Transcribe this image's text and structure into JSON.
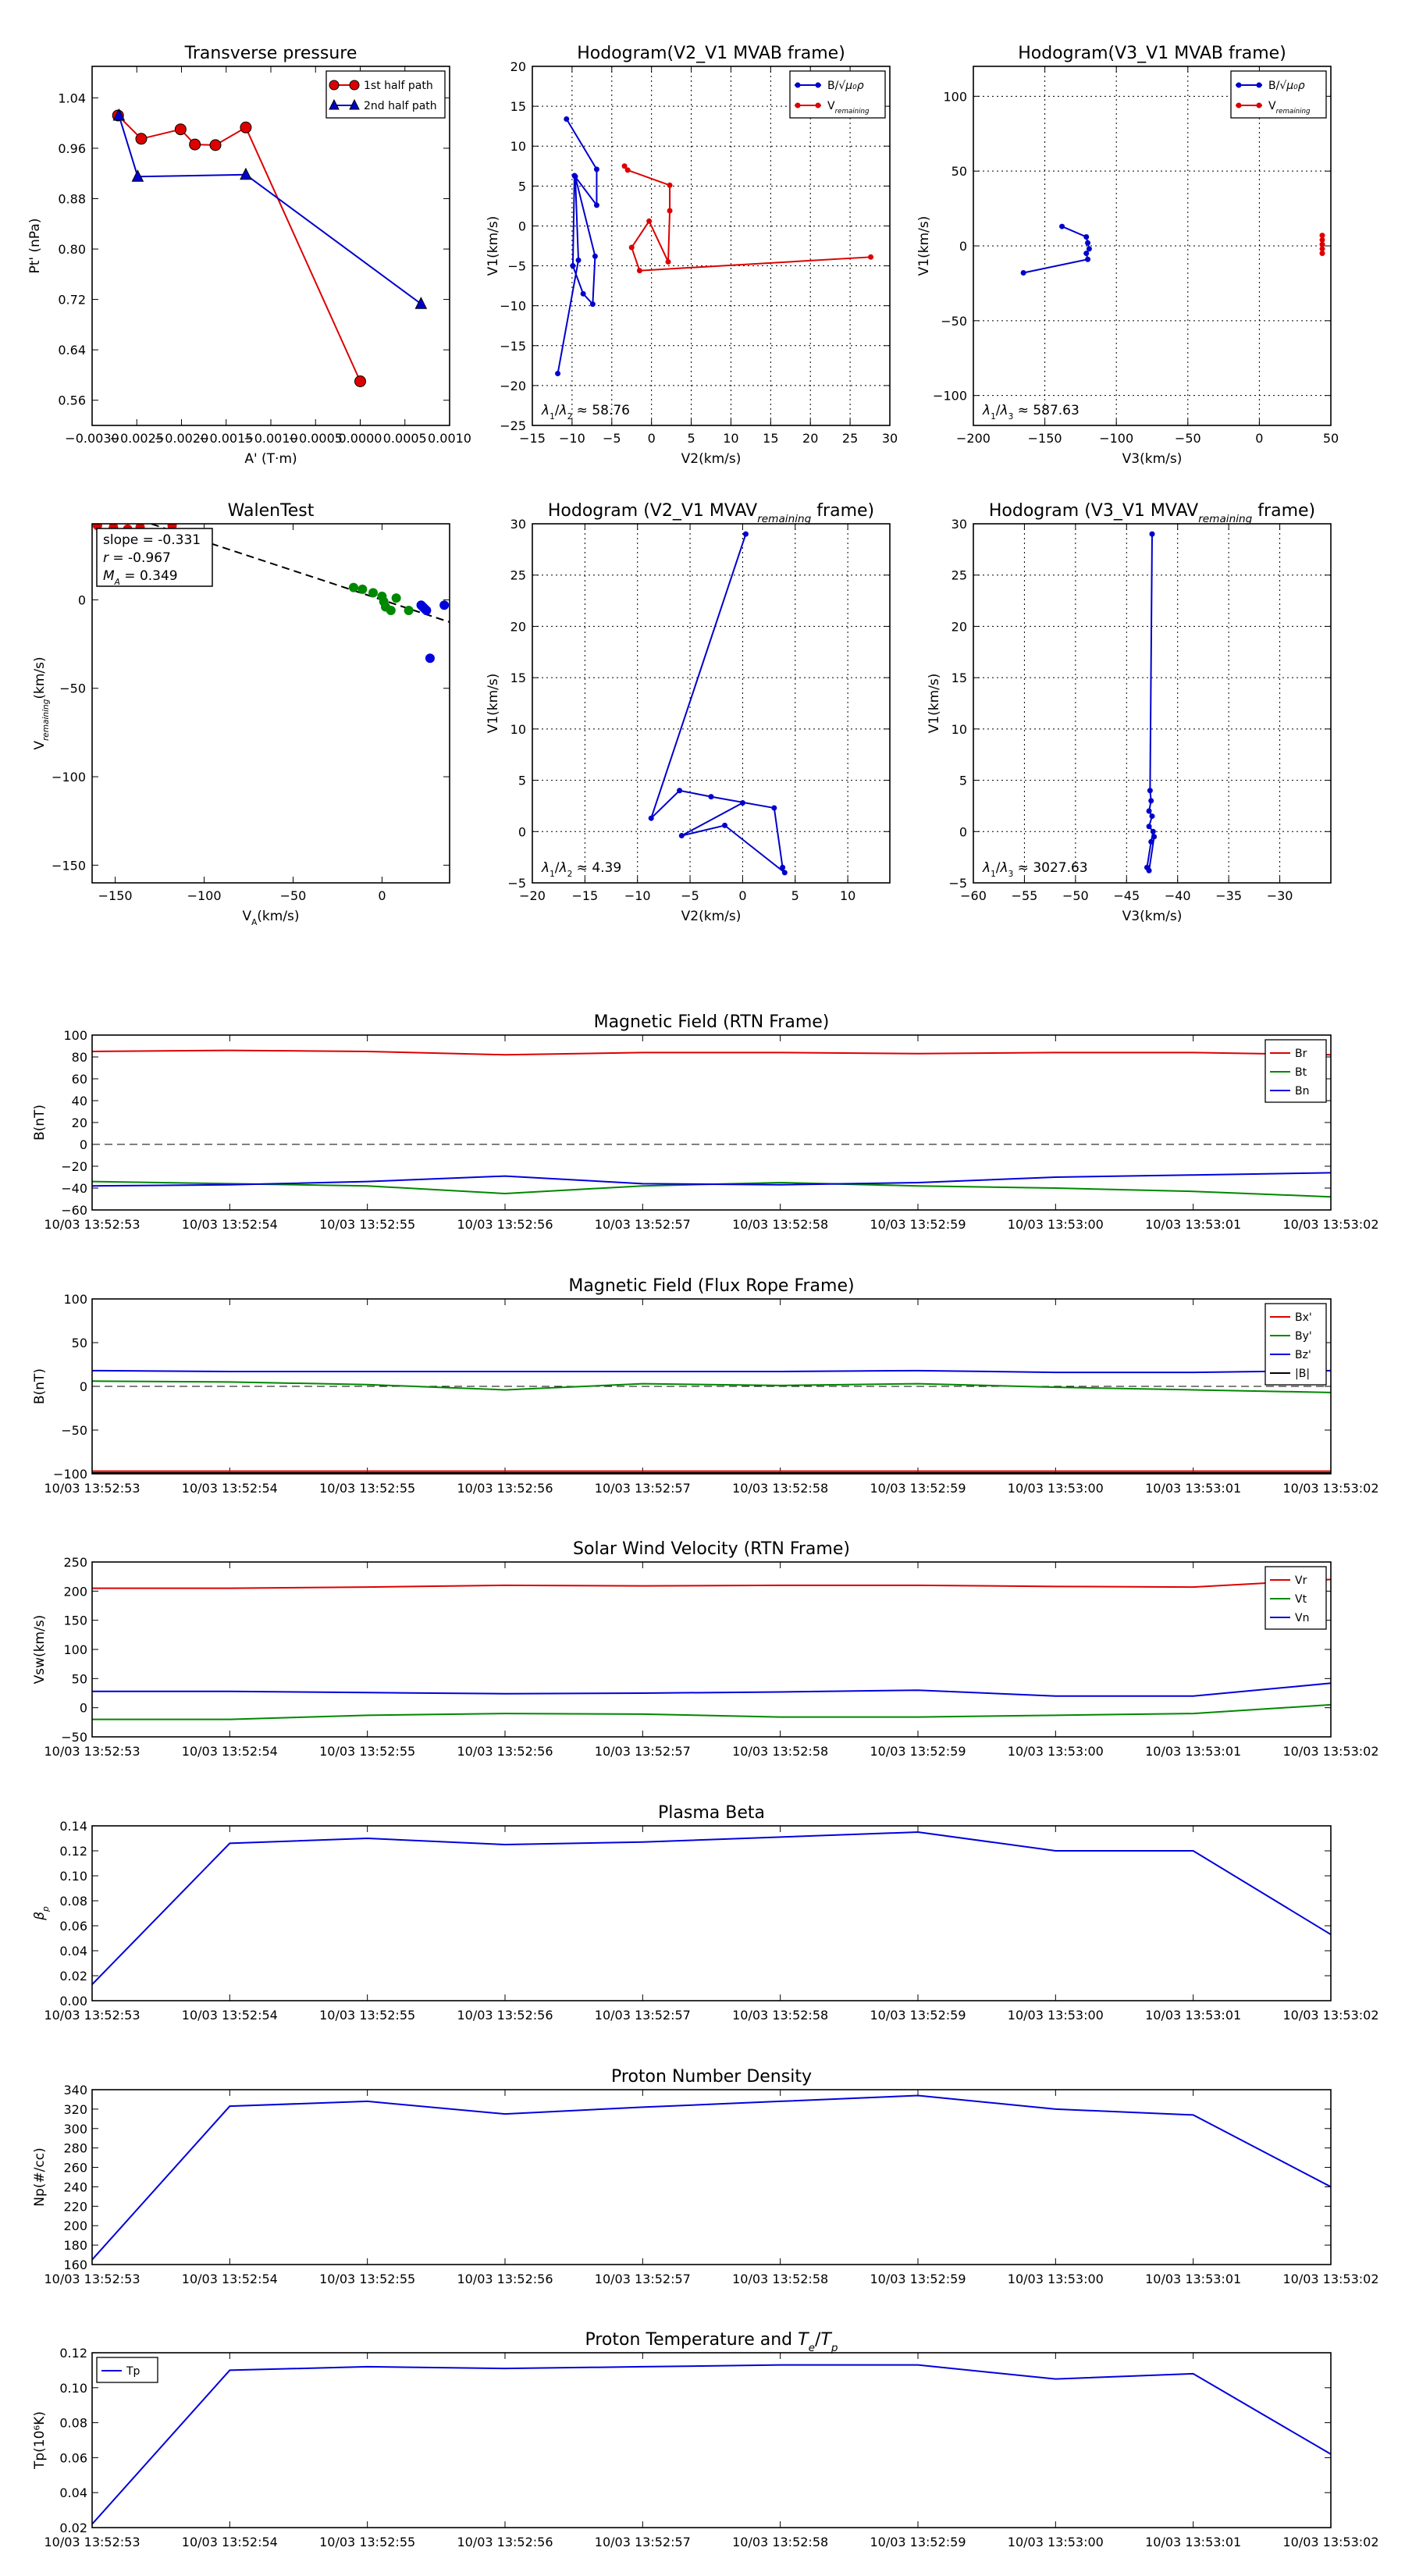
{
  "chart_data": [
    {
      "id": "tp",
      "type": "line",
      "title": "Transverse pressure",
      "xlabel": "A' (T·m)",
      "ylabel": "Pt' (nPa)",
      "xlim": [
        -0.003,
        0.001
      ],
      "ylim": [
        0.52,
        1.09
      ],
      "xticks": [
        -0.003,
        -0.0025,
        -0.002,
        -0.0015,
        -0.001,
        -0.0005,
        0.0,
        0.0005,
        0.001
      ],
      "xtick_labels": [
        "−0.0030",
        "−0.0025",
        "−0.0020",
        "−0.0015",
        "−0.0010",
        "−0.0005",
        "0.0000",
        "0.0005",
        "0.0010"
      ],
      "yticks": [
        0.56,
        0.64,
        0.72,
        0.8,
        0.88,
        0.96,
        1.04
      ],
      "ytick_labels": [
        "0.56",
        "0.64",
        "0.72",
        "0.80",
        "0.88",
        "0.96",
        "1.04"
      ],
      "grid": false,
      "legend": "top-right",
      "series": [
        {
          "name": "1st half path",
          "color": "#dd0000",
          "marker": "circle",
          "x": [
            0.0,
            -0.00128,
            -0.00162,
            -0.00185,
            -0.00201,
            -0.00245,
            -0.00271
          ],
          "y": [
            0.59,
            0.993,
            0.965,
            0.966,
            0.99,
            0.975,
            1.012
          ]
        },
        {
          "name": "2nd half path",
          "color": "#0000cc",
          "marker": "triangle",
          "x": [
            -0.0027,
            -0.00249,
            -0.00128,
            0.00068
          ],
          "y": [
            1.012,
            0.915,
            0.918,
            0.713
          ]
        }
      ]
    },
    {
      "id": "hodo_v2v1_mvab",
      "type": "line",
      "title": "Hodogram(V2_V1 MVAB frame)",
      "xlabel": "V2(km/s)",
      "ylabel": "V1(km/s)",
      "xlim": [
        -15,
        30
      ],
      "ylim": [
        -25,
        20
      ],
      "xticks": [
        -15,
        -10,
        -5,
        0,
        5,
        10,
        15,
        20,
        25,
        30
      ],
      "yticks": [
        -25,
        -20,
        -15,
        -10,
        -5,
        0,
        5,
        10,
        15,
        20
      ],
      "grid": true,
      "legend": "top-right",
      "annotation": "λ₁/λ₂ ≈ 58.76",
      "series": [
        {
          "name": "B/√(μ₀ρ)",
          "color": "#0000cc",
          "x": [
            -11.8,
            -9.2,
            -9.6,
            -7.1,
            -7.4,
            -8.6,
            -9.9,
            -9.7,
            -6.9,
            -6.9,
            -10.7
          ],
          "y": [
            -18.5,
            -4.3,
            6.2,
            -3.8,
            -9.8,
            -8.5,
            -5.0,
            6.3,
            2.6,
            7.1,
            13.4
          ]
        },
        {
          "name": "V_remaining",
          "color": "#dd0000",
          "x": [
            27.6,
            -1.5,
            -2.5,
            -0.3,
            2.1,
            2.3,
            2.3,
            -3.0,
            -3.4
          ],
          "y": [
            -3.9,
            -5.6,
            -2.7,
            0.6,
            -4.5,
            1.9,
            5.1,
            7.0,
            7.5
          ]
        }
      ]
    },
    {
      "id": "hodo_v3v1_mvab",
      "type": "line",
      "title": "Hodogram(V3_V1 MVAB frame)",
      "xlabel": "V3(km/s)",
      "ylabel": "V1(km/s)",
      "xlim": [
        -200,
        50
      ],
      "ylim": [
        -120,
        120
      ],
      "xticks": [
        -200,
        -150,
        -100,
        -50,
        0,
        50
      ],
      "yticks": [
        -100,
        -50,
        0,
        50,
        100
      ],
      "grid": true,
      "legend": "top-right",
      "annotation": "λ₁/λ₃ ≈ 587.63",
      "series": [
        {
          "name": "B/√(μ₀ρ)",
          "color": "#0000cc",
          "x": [
            -165,
            -120,
            -121,
            -119,
            -120,
            -121,
            -138
          ],
          "y": [
            -18,
            -9,
            -5,
            -2,
            2,
            6,
            13
          ]
        },
        {
          "name": "V_remaining",
          "color": "#dd0000",
          "x": [
            44,
            44,
            44,
            44,
            44
          ],
          "y": [
            -5,
            -2,
            1,
            4,
            7
          ]
        }
      ]
    },
    {
      "id": "walen",
      "type": "scatter",
      "title": "WalenTest",
      "xlabel": "V_A(km/s)",
      "ylabel": "V_remaining(km/s)",
      "xlim": [
        -163,
        38
      ],
      "ylim": [
        -160,
        43
      ],
      "xticks": [
        -150,
        -100,
        -50,
        0
      ],
      "yticks": [
        -150,
        -100,
        -50,
        0
      ],
      "grid": false,
      "stats": [
        "slope = -0.331",
        "r = -0.967",
        "M_A = 0.349"
      ],
      "fit": {
        "slope": -0.331,
        "intercept": 0
      },
      "series": [
        {
          "name": "red",
          "color": "#dd0000",
          "x": [
            -160,
            -151,
            -143,
            -136,
            -118
          ],
          "y": [
            42,
            41,
            40,
            41,
            42
          ]
        },
        {
          "name": "green",
          "color": "#008800",
          "x": [
            -16,
            -11,
            -5,
            0,
            1,
            2,
            5,
            8,
            15
          ],
          "y": [
            7,
            6,
            4,
            2,
            -1,
            -4,
            -6,
            1,
            -6
          ]
        },
        {
          "name": "blue",
          "color": "#0000dd",
          "x": [
            22,
            23,
            24,
            25,
            27,
            35
          ],
          "y": [
            -3,
            -4,
            -5,
            -6,
            -33,
            -3
          ]
        }
      ]
    },
    {
      "id": "hodo_v2v1_mvav",
      "type": "line",
      "title": "Hodogram (V2_V1 MVAV_remaining frame)",
      "xlabel": "V2(km/s)",
      "ylabel": "V1(km/s)",
      "xlim": [
        -20,
        14
      ],
      "ylim": [
        -5,
        30
      ],
      "xticks": [
        -20,
        -15,
        -10,
        -5,
        0,
        5,
        10
      ],
      "yticks": [
        -5,
        0,
        5,
        10,
        15,
        20,
        25,
        30
      ],
      "grid": true,
      "annotation": "λ₁/λ₂ ≈ 4.39",
      "series": [
        {
          "name": "V",
          "color": "#0000cc",
          "x": [
            0.3,
            -8.7,
            -6.0,
            -3.0,
            3.0,
            3.8,
            4.0,
            -1.7,
            -5.8,
            0.0
          ],
          "y": [
            29.0,
            1.3,
            4.0,
            3.4,
            2.3,
            -3.5,
            -4.0,
            0.6,
            -0.4,
            2.8
          ]
        }
      ]
    },
    {
      "id": "hodo_v3v1_mvav",
      "type": "line",
      "title": "Hodogram (V3_V1 MVAV_remaining frame)",
      "xlabel": "V3(km/s)",
      "ylabel": "V1(km/s)",
      "xlim": [
        -60,
        -25
      ],
      "ylim": [
        -5,
        30
      ],
      "xticks": [
        -60,
        -55,
        -50,
        -45,
        -40,
        -35,
        -30
      ],
      "yticks": [
        -5,
        0,
        5,
        10,
        15,
        20,
        25,
        30
      ],
      "grid": true,
      "annotation": "λ₁/λ₃ ≈ 3027.63",
      "series": [
        {
          "name": "V",
          "color": "#0000cc",
          "x": [
            -42.5,
            -42.7,
            -42.6,
            -42.8,
            -42.5,
            -42.8,
            -42.4,
            -42.6,
            -43.0,
            -42.8,
            -42.3
          ],
          "y": [
            29.0,
            4.0,
            3.0,
            2.0,
            1.5,
            0.5,
            0.0,
            -1.0,
            -3.5,
            -3.8,
            -0.5
          ]
        }
      ]
    },
    {
      "id": "bfield_rtn",
      "type": "line",
      "title": "Magnetic Field (RTN Frame)",
      "ylabel": "B(nT)",
      "ylim": [
        -60,
        100
      ],
      "yticks": [
        -60,
        -40,
        -20,
        0,
        20,
        40,
        60,
        80,
        100
      ],
      "zero_line": true,
      "legend": "top-right",
      "series": [
        {
          "name": "Br",
          "color": "#dd0000",
          "values": [
            85,
            86,
            85,
            82,
            84,
            84,
            83,
            84,
            84,
            82
          ]
        },
        {
          "name": "Bt",
          "color": "#008800",
          "values": [
            -34,
            -36,
            -38,
            -45,
            -38,
            -35,
            -38,
            -40,
            -43,
            -48
          ]
        },
        {
          "name": "Bn",
          "color": "#0000dd",
          "values": [
            -38,
            -37,
            -34,
            -29,
            -36,
            -37,
            -35,
            -30,
            -28,
            -26
          ]
        }
      ]
    },
    {
      "id": "bfield_fr",
      "type": "line",
      "title": "Magnetic Field (Flux Rope Frame)",
      "ylabel": "B(nT)",
      "ylim": [
        -100,
        100
      ],
      "yticks": [
        -100,
        -50,
        0,
        50,
        100
      ],
      "zero_line": true,
      "legend": "top-right",
      "series": [
        {
          "name": "Bx'",
          "color": "#dd0000",
          "values": [
            -97,
            -97,
            -97,
            -97,
            -97,
            -97,
            -97,
            -97,
            -97,
            -97
          ]
        },
        {
          "name": "By'",
          "color": "#008800",
          "values": [
            6,
            5,
            2,
            -4,
            3,
            1,
            3,
            -1,
            -4,
            -7
          ]
        },
        {
          "name": "Bz'",
          "color": "#0000dd",
          "values": [
            18,
            17,
            17,
            17,
            17,
            17,
            18,
            16,
            16,
            18
          ]
        },
        {
          "name": "|B|",
          "color": "#000000",
          "values": [
            -99,
            -99,
            -99,
            -99,
            -99,
            -99,
            -99,
            -99,
            -99,
            -99
          ]
        }
      ]
    },
    {
      "id": "vsw",
      "type": "line",
      "title": "Solar Wind Velocity (RTN Frame)",
      "ylabel": "Vsw(km/s)",
      "ylim": [
        -50,
        250
      ],
      "yticks": [
        -50,
        0,
        50,
        100,
        150,
        200,
        250
      ],
      "legend": "top-right",
      "series": [
        {
          "name": "Vr",
          "color": "#dd0000",
          "values": [
            205,
            205,
            207,
            210,
            209,
            210,
            210,
            208,
            207,
            220
          ]
        },
        {
          "name": "Vt",
          "color": "#008800",
          "values": [
            -20,
            -20,
            -13,
            -10,
            -11,
            -16,
            -16,
            -13,
            -10,
            5
          ]
        },
        {
          "name": "Vn",
          "color": "#0000dd",
          "values": [
            28,
            28,
            26,
            24,
            25,
            27,
            30,
            20,
            20,
            42
          ]
        }
      ]
    },
    {
      "id": "beta",
      "type": "line",
      "title": "Plasma Beta",
      "ylabel": "βp",
      "ylim": [
        0.0,
        0.14
      ],
      "yticks": [
        0.0,
        0.02,
        0.04,
        0.06,
        0.08,
        0.1,
        0.12,
        0.14
      ],
      "ytick_labels": [
        "0.00",
        "0.02",
        "0.04",
        "0.06",
        "0.08",
        "0.10",
        "0.12",
        "0.14"
      ],
      "series": [
        {
          "name": "beta",
          "color": "#0000dd",
          "values": [
            0.013,
            0.126,
            0.13,
            0.125,
            0.127,
            0.131,
            0.135,
            0.12,
            0.12,
            0.053
          ]
        }
      ]
    },
    {
      "id": "np",
      "type": "line",
      "title": "Proton Number Density",
      "ylabel": "Np(#/cc)",
      "ylim": [
        160,
        340
      ],
      "yticks": [
        160,
        180,
        200,
        220,
        240,
        260,
        280,
        300,
        320,
        340
      ],
      "series": [
        {
          "name": "Np",
          "color": "#0000dd",
          "values": [
            165,
            323,
            328,
            315,
            322,
            328,
            334,
            320,
            314,
            240
          ]
        }
      ]
    },
    {
      "id": "tp_temp",
      "type": "line",
      "title": "Proton Temperature and Te/Tp",
      "ylabel": "Tp(10⁶K)",
      "ylim": [
        0.02,
        0.12
      ],
      "yticks": [
        0.02,
        0.04,
        0.06,
        0.08,
        0.1,
        0.12
      ],
      "ytick_labels": [
        "0.02",
        "0.04",
        "0.06",
        "0.08",
        "0.10",
        "0.12"
      ],
      "legend": "top-left",
      "series": [
        {
          "name": "Tp",
          "color": "#0000dd",
          "values": [
            0.022,
            0.11,
            0.112,
            0.111,
            0.112,
            0.113,
            0.113,
            0.105,
            0.108,
            0.062
          ]
        }
      ]
    }
  ],
  "time_labels": [
    "10/03 13:52:53",
    "10/03 13:52:54",
    "10/03 13:52:55",
    "10/03 13:52:56",
    "10/03 13:52:57",
    "10/03 13:52:58",
    "10/03 13:52:59",
    "10/03 13:53:00",
    "10/03 13:53:01",
    "10/03 13:53:02"
  ],
  "subscripts": {
    "remaining": "remaining",
    "A": "A",
    "p": "p",
    "e": "e"
  }
}
